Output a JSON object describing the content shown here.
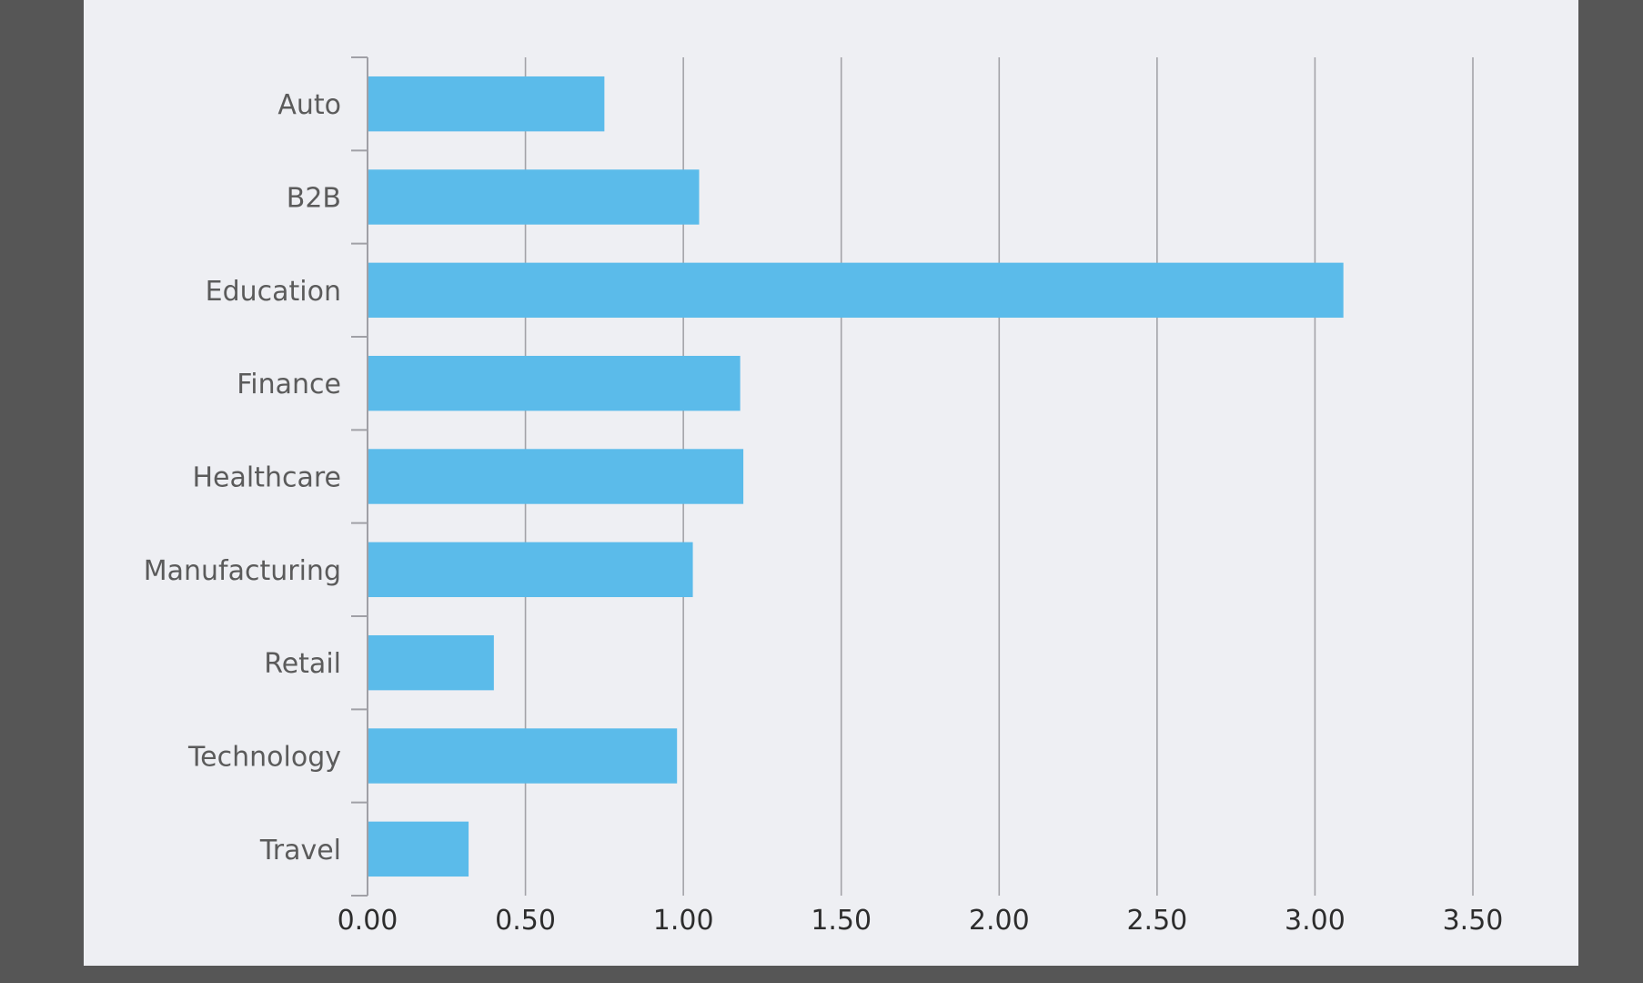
{
  "colors": {
    "bar": "#5bbbea",
    "frame": "#565656",
    "panel": "#eeeff3",
    "grid": "#a3a3a8",
    "label": "#5b5b5b",
    "tick": "#2d2d2d"
  },
  "chart_data": {
    "type": "bar",
    "orientation": "horizontal",
    "categories": [
      "Auto",
      "B2B",
      "Education",
      "Finance",
      "Healthcare",
      "Manufacturing",
      "Retail",
      "Technology",
      "Travel"
    ],
    "values": [
      0.75,
      1.05,
      3.09,
      1.18,
      1.19,
      1.03,
      0.4,
      0.98,
      0.32
    ],
    "title": "",
    "xlabel": "",
    "ylabel": "",
    "xlim": [
      0,
      3.5
    ],
    "x_ticks": [
      "0.00",
      "0.50",
      "1.00",
      "1.50",
      "2.00",
      "2.50",
      "3.00",
      "3.50"
    ],
    "grid": "vertical",
    "legend": "none"
  }
}
